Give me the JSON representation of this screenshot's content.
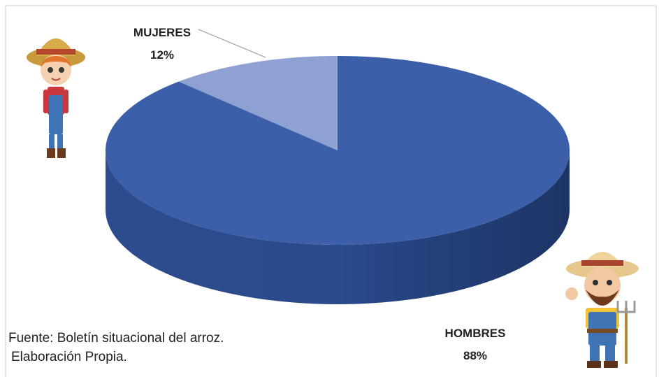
{
  "chart_data": {
    "type": "pie",
    "categories": [
      "MUJERES",
      "HOMBRES"
    ],
    "values": [
      12,
      88
    ],
    "value_labels": [
      "12%",
      "88%"
    ],
    "colors": [
      "#8fa0d3",
      "#3b5fa9"
    ],
    "note": [
      "Fuente: Boletín situacional del arroz.",
      "Elaboración Propia."
    ]
  }
}
